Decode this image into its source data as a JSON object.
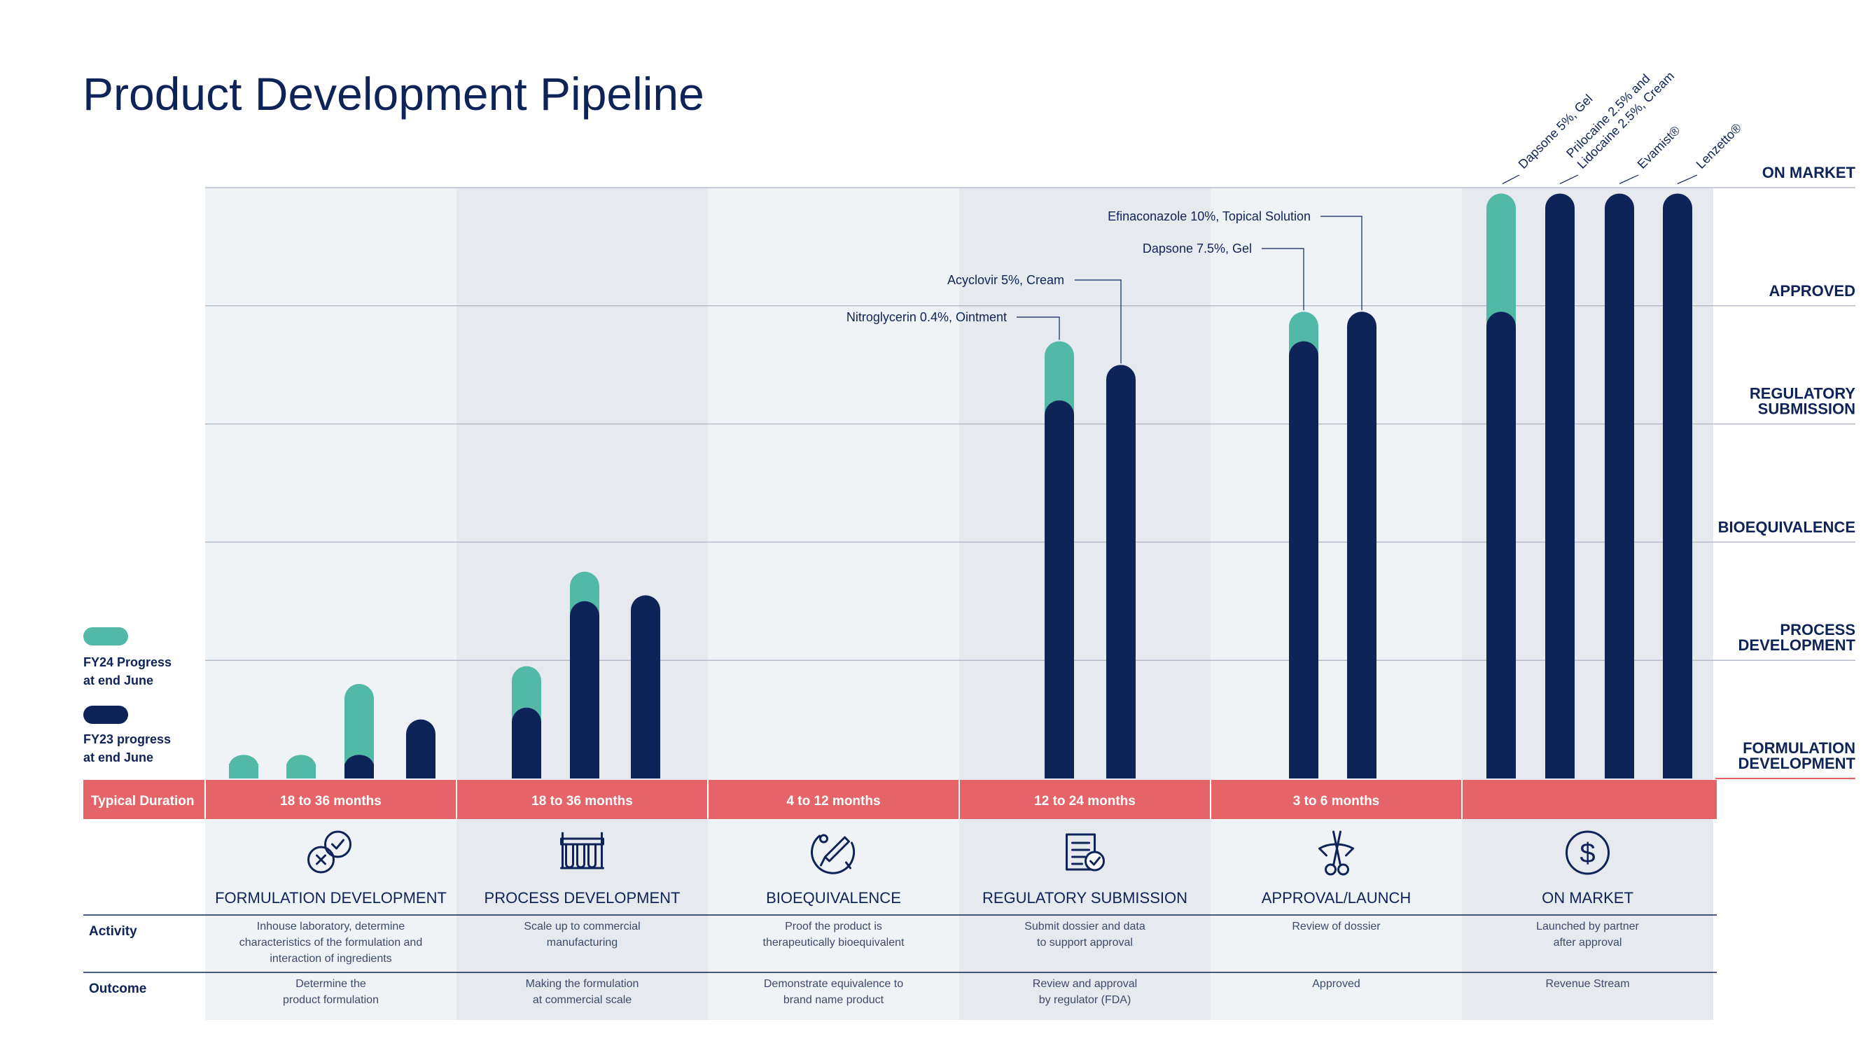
{
  "title": "Product Development Pipeline",
  "colors": {
    "fy23": "#0e2357",
    "fy24": "#52b9a6",
    "duration_band": "#e5646a",
    "column_light": "#f0f3f6",
    "column_dark": "#e6e9ee",
    "grid": "#b5bcc8",
    "text": "#0e2357"
  },
  "legend": {
    "fy24": "FY24 Progress\nat end June",
    "fy23": "FY23 progress\nat end June"
  },
  "chart_data": {
    "type": "bar",
    "title": "Product Development Pipeline",
    "y_levels": [
      "FORMULATION DEVELOPMENT",
      "PROCESS DEVELOPMENT",
      "BIOEQUIVALENCE",
      "REGULATORY SUBMISSION",
      "APPROVED",
      "ON MARKET"
    ],
    "y_levels_display": [
      "FORMULATION\nDEVELOPMENT",
      "PROCESS\nDEVELOPMENT",
      "BIOEQUIVALENCE",
      "REGULATORY\nSUBMISSION",
      "APPROVED",
      "ON MARKET"
    ],
    "y_range": [
      0,
      5
    ],
    "series": [
      {
        "name": "FY23 progress at end June",
        "color": "#0e2357"
      },
      {
        "name": "FY24 Progress at end June",
        "color": "#52b9a6"
      }
    ],
    "bars": [
      {
        "column": 0,
        "fy23": 0.0,
        "fy24": 0.2
      },
      {
        "column": 0,
        "fy23": 0.0,
        "fy24": 0.2
      },
      {
        "column": 0,
        "fy23": 0.2,
        "fy24": 0.8
      },
      {
        "column": 0,
        "fy23": 0.5,
        "fy24": 0.5
      },
      {
        "column": 1,
        "fy23": 0.6,
        "fy24": 0.95
      },
      {
        "column": 1,
        "fy23": 1.5,
        "fy24": 1.75
      },
      {
        "column": 1,
        "fy23": 1.55,
        "fy24": 1.55
      },
      {
        "column": 3,
        "fy23": 3.2,
        "fy24": 3.7,
        "label": "Nitroglycerin 0.4%, Ointment"
      },
      {
        "column": 3,
        "fy23": 3.5,
        "fy24": 3.5,
        "label": "Acyclovir 5%, Cream"
      },
      {
        "column": 4,
        "fy23": 3.7,
        "fy24": 3.95,
        "label": "Dapsone 7.5%, Gel"
      },
      {
        "column": 4,
        "fy23": 3.95,
        "fy24": 3.95,
        "label": "Efinaconazole 10%, Topical Solution"
      },
      {
        "column": 5,
        "fy23": 3.95,
        "fy24": 4.95,
        "label": "Dapsone 5%, Gel"
      },
      {
        "column": 5,
        "fy23": 4.95,
        "fy24": 4.95,
        "label": "Prilocaine 2.5% and\nLidocaine 2.5%, Cream"
      },
      {
        "column": 5,
        "fy23": 4.95,
        "fy24": 4.95,
        "label": "Evamist®"
      },
      {
        "column": 5,
        "fy23": 4.95,
        "fy24": 4.95,
        "label": "Lenzetto®"
      }
    ]
  },
  "duration_header": "Typical Duration",
  "columns": [
    {
      "duration": "18 to 36 months",
      "icon": "formulation-molecule-icon",
      "phase": "FORMULATION DEVELOPMENT",
      "activity": "Inhouse laboratory, determine\ncharacteristics of the formulation and\ninteraction of ingredients",
      "outcome": "Determine the\nproduct formulation"
    },
    {
      "duration": "18 to 36 months",
      "icon": "test-tubes-icon",
      "phase": "PROCESS DEVELOPMENT",
      "activity": "Scale up to commercial\nmanufacturing",
      "outcome": "Making the formulation\nat commercial scale"
    },
    {
      "duration": "4 to 12 months",
      "icon": "thermometer-dial-icon",
      "phase": "BIOEQUIVALENCE",
      "activity": "Proof the product is\ntherapeutically bioequivalent",
      "outcome": "Demonstrate equivalence to\nbrand name product"
    },
    {
      "duration": "12 to 24 months",
      "icon": "document-check-icon",
      "phase": "REGULATORY SUBMISSION",
      "activity": "Submit dossier and data\nto support approval",
      "outcome": "Review and approval\nby regulator (FDA)"
    },
    {
      "duration": "3 to 6 months",
      "icon": "ribbon-cutting-icon",
      "phase": "APPROVAL/LAUNCH",
      "activity": "Review of dossier",
      "outcome": "Approved"
    },
    {
      "duration": "",
      "icon": "dollar-circle-icon",
      "phase": "ON MARKET",
      "activity": "Launched by partner\nafter approval",
      "outcome": "Revenue Stream"
    }
  ],
  "rows": {
    "activity": "Activity",
    "outcome": "Outcome"
  }
}
